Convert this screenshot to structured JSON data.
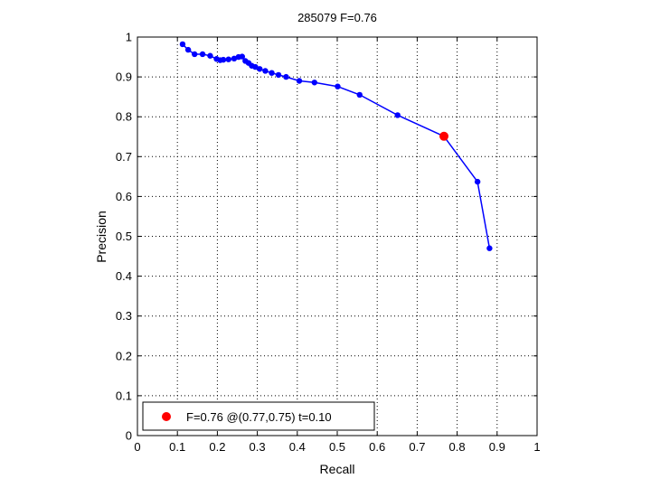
{
  "chart_data": {
    "type": "line",
    "title": "285079 F=0.76",
    "xlabel": "Recall",
    "ylabel": "Precision",
    "xlim": [
      0,
      1
    ],
    "ylim": [
      0,
      1
    ],
    "xticks": [
      0,
      0.1,
      0.2,
      0.3,
      0.4,
      0.5,
      0.6,
      0.7,
      0.8,
      0.9,
      1
    ],
    "yticks": [
      0,
      0.1,
      0.2,
      0.3,
      0.4,
      0.5,
      0.6,
      0.7,
      0.8,
      0.9,
      1
    ],
    "xtick_labels": [
      "0",
      "0.1",
      "0.2",
      "0.3",
      "0.4",
      "0.5",
      "0.6",
      "0.7",
      "0.8",
      "0.9",
      "1"
    ],
    "ytick_labels": [
      "0",
      "0.1",
      "0.2",
      "0.3",
      "0.4",
      "0.5",
      "0.6",
      "0.7",
      "0.8",
      "0.9",
      "1"
    ],
    "grid": true,
    "legend_position": "bottom-left",
    "series": [
      {
        "color": "#0000ff",
        "marker": "dot",
        "x": [
          0.113,
          0.127,
          0.143,
          0.163,
          0.182,
          0.198,
          0.207,
          0.215,
          0.228,
          0.242,
          0.253,
          0.262,
          0.27,
          0.278,
          0.286,
          0.295,
          0.306,
          0.32,
          0.336,
          0.353,
          0.372,
          0.405,
          0.443,
          0.501,
          0.556,
          0.651,
          0.767,
          0.851,
          0.881
        ],
        "y": [
          0.982,
          0.968,
          0.957,
          0.957,
          0.953,
          0.945,
          0.942,
          0.943,
          0.944,
          0.946,
          0.95,
          0.951,
          0.94,
          0.935,
          0.928,
          0.925,
          0.92,
          0.915,
          0.91,
          0.905,
          0.9,
          0.89,
          0.886,
          0.876,
          0.855,
          0.804,
          0.751,
          0.637,
          0.47
        ]
      }
    ],
    "highlight": {
      "color": "#ff0000",
      "x": 0.767,
      "y": 0.751,
      "legend_label": "F=0.76 @(0.77,0.75) t=0.10"
    }
  }
}
